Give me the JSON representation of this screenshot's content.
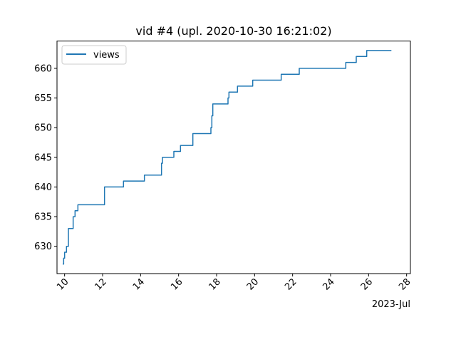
{
  "chart_data": {
    "type": "line",
    "title": "vid #4 (upl. 2020-10-30 16:21:02)",
    "xlabel": "",
    "ylabel": "",
    "x_offset_label": "2023-Jul",
    "x_ticks": [
      "10",
      "12",
      "14",
      "16",
      "18",
      "20",
      "22",
      "24",
      "26",
      "28"
    ],
    "y_ticks": [
      "630",
      "635",
      "640",
      "645",
      "650",
      "655",
      "660"
    ],
    "xlim": [
      9.6,
      28.2
    ],
    "ylim": [
      625.4,
      664.6
    ],
    "grid": false,
    "legend_position": "top-left",
    "series": [
      {
        "name": "views",
        "color": "#1f77b4",
        "x": [
          9.9,
          9.95,
          10.0,
          10.05,
          10.1,
          10.2,
          10.3,
          10.45,
          10.55,
          10.7,
          12.1,
          13.1,
          14.2,
          15.1,
          15.15,
          15.2,
          15.75,
          16.1,
          16.75,
          17.7,
          17.75,
          17.8,
          17.85,
          18.6,
          18.65,
          18.75,
          19.1,
          19.9,
          21.4,
          22.35,
          24.8,
          25.35,
          25.9,
          27.2
        ],
        "y": [
          627,
          628,
          629,
          629,
          630,
          633,
          633,
          635,
          636,
          637,
          640,
          641,
          642,
          644,
          645,
          645,
          646,
          647,
          649,
          650,
          652,
          654,
          654,
          655,
          656,
          656,
          657,
          658,
          659,
          660,
          661,
          662,
          663,
          663
        ]
      }
    ]
  }
}
